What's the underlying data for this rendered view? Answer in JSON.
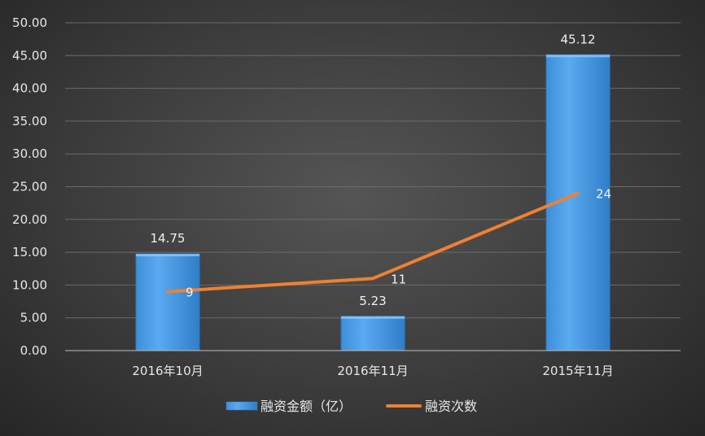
{
  "chart_data": {
    "type": "bar",
    "categories": [
      "2016年10月",
      "2016年11月",
      "2015年11月"
    ],
    "series": [
      {
        "name": "融资金额（亿）",
        "type": "bar",
        "values": [
          14.75,
          5.23,
          45.12
        ],
        "color": "#4a9ee8"
      },
      {
        "name": "融资次数",
        "type": "line",
        "values": [
          9,
          11,
          24
        ],
        "color": "#f08030"
      }
    ],
    "bar_labels": [
      "14.75",
      "5.23",
      "45.12"
    ],
    "line_labels": [
      "9",
      "11",
      "24"
    ],
    "ylim": [
      0,
      50
    ],
    "yticks": [
      "0.00",
      "5.00",
      "10.00",
      "15.00",
      "20.00",
      "25.00",
      "30.00",
      "35.00",
      "40.00",
      "45.00",
      "50.00"
    ],
    "grid": true,
    "legend_position": "bottom",
    "background": "#3c3c3c"
  }
}
